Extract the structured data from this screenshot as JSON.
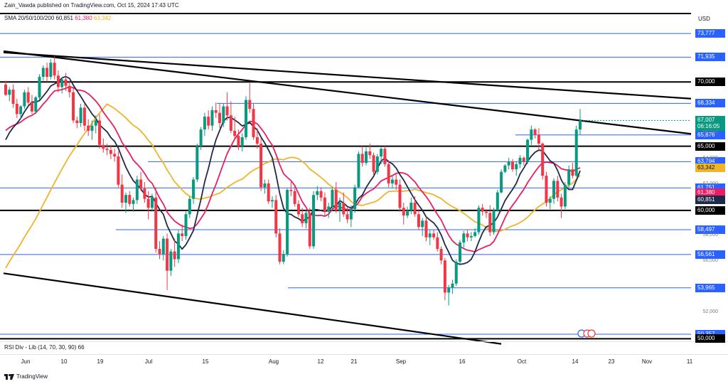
{
  "header": {
    "published": "Zain_Vawda published on TradingView.com, Oct 15, 2024 17:43 UTC"
  },
  "indicators": {
    "sma_label": "SMA 20/50/100/200",
    "sma_values": [
      "60,851",
      "61,380",
      "63,342"
    ],
    "rsi_label": "RSI Div - Lib (14, 70, 30, 90)",
    "rsi_value": "66"
  },
  "footer": {
    "brand": "TradingView"
  },
  "colors": {
    "up": "#089981",
    "down": "#f23645",
    "sma_dark": "#1e2a4a",
    "sma_red": "#e91e63",
    "sma_yellow": "#f0b429",
    "level_blue": "#2962ff",
    "black": "#000000",
    "last_green": "#089981"
  },
  "chart_data": {
    "type": "candlestick",
    "currency": "USD",
    "ylim": [
      49800,
      75500
    ],
    "x_tick_labels": [
      "Jun",
      "10",
      "19",
      "Jul",
      "15",
      "Aug",
      "12",
      "21",
      "Sep",
      "16",
      "Oct",
      "14",
      "23",
      "Nov",
      "11"
    ],
    "price_axis_labels": [
      "66,000",
      "64,000",
      "62,000",
      "58,000",
      "56,000",
      "52,000"
    ],
    "levels_blue": [
      73777,
      71935,
      68334,
      65876,
      63794,
      61751,
      58497,
      56561,
      53965,
      50357
    ],
    "levels_black": [
      70000,
      65000,
      60000,
      50000
    ],
    "axis_tags": [
      {
        "label": "73,777",
        "kind": "blue",
        "value": 73777
      },
      {
        "label": "71,935",
        "kind": "blue",
        "value": 71935
      },
      {
        "label": "70,000",
        "kind": "black",
        "value": 70000
      },
      {
        "label": "68,334",
        "kind": "blue",
        "value": 68334
      },
      {
        "label": "67,007",
        "kind": "green",
        "value": 67007
      },
      {
        "label": "06:16:05",
        "kind": "green-sub",
        "value": 66540
      },
      {
        "label": "65,876",
        "kind": "blue",
        "value": 65876
      },
      {
        "label": "65,000",
        "kind": "black",
        "value": 65000
      },
      {
        "label": "63,794",
        "kind": "blue",
        "value": 63794
      },
      {
        "label": "63,342",
        "kind": "yellow",
        "value": 63342
      },
      {
        "label": "61,751",
        "kind": "blue",
        "value": 61751
      },
      {
        "label": "61,380",
        "kind": "red",
        "value": 61380
      },
      {
        "label": "60,851",
        "kind": "dark",
        "value": 60851
      },
      {
        "label": "60,000",
        "kind": "black",
        "value": 60000
      },
      {
        "label": "58,497",
        "kind": "blue",
        "value": 58497
      },
      {
        "label": "56,561",
        "kind": "blue",
        "value": 56561
      },
      {
        "label": "53,965",
        "kind": "blue",
        "value": 53965
      },
      {
        "label": "50,357",
        "kind": "blue",
        "value": 50357
      },
      {
        "label": "50,000",
        "kind": "black",
        "value": 50000
      }
    ],
    "candles": [
      [
        69800,
        70100,
        68900,
        69000
      ],
      [
        69000,
        69600,
        68500,
        69400
      ],
      [
        69400,
        69800,
        68000,
        68300
      ],
      [
        68300,
        68700,
        67200,
        67500
      ],
      [
        67500,
        68200,
        67100,
        68100
      ],
      [
        68100,
        69400,
        67900,
        69200
      ],
      [
        69200,
        69600,
        68200,
        68400
      ],
      [
        68400,
        69000,
        67500,
        67700
      ],
      [
        67700,
        68900,
        67500,
        68800
      ],
      [
        68800,
        70600,
        68600,
        70400
      ],
      [
        70400,
        71300,
        70100,
        71100
      ],
      [
        71100,
        71500,
        70000,
        70400
      ],
      [
        70400,
        71800,
        70200,
        71500
      ],
      [
        71500,
        72000,
        70200,
        70500
      ],
      [
        70500,
        70900,
        69200,
        69600
      ],
      [
        69600,
        70400,
        69100,
        70200
      ],
      [
        70200,
        70700,
        69300,
        69700
      ],
      [
        69700,
        70100,
        68800,
        69200
      ],
      [
        69200,
        69500,
        66800,
        67000
      ],
      [
        67000,
        67300,
        66400,
        66800
      ],
      [
        66800,
        68300,
        66500,
        68000
      ],
      [
        68000,
        68300,
        66200,
        66600
      ],
      [
        66600,
        67100,
        65800,
        66200
      ],
      [
        66200,
        67000,
        65500,
        66600
      ],
      [
        66600,
        67400,
        66000,
        67000
      ],
      [
        67000,
        67500,
        64800,
        65100
      ],
      [
        65100,
        65600,
        64500,
        64800
      ],
      [
        64800,
        65200,
        64300,
        64700
      ],
      [
        64700,
        65100,
        64000,
        64400
      ],
      [
        64400,
        64800,
        63800,
        64200
      ],
      [
        64200,
        64600,
        61800,
        62000
      ],
      [
        62000,
        62800,
        60200,
        60600
      ],
      [
        60600,
        61400,
        59800,
        61200
      ],
      [
        61200,
        61500,
        60300,
        60500
      ],
      [
        60500,
        61000,
        59900,
        60800
      ],
      [
        60800,
        62700,
        60500,
        62400
      ],
      [
        62400,
        63000,
        61500,
        61700
      ],
      [
        61700,
        62200,
        60600,
        60900
      ],
      [
        60900,
        61500,
        59300,
        60200
      ],
      [
        60200,
        61300,
        59900,
        61000
      ],
      [
        61000,
        61800,
        56700,
        57000
      ],
      [
        57000,
        57600,
        56200,
        56600
      ],
      [
        56600,
        58000,
        56100,
        57800
      ],
      [
        57800,
        58200,
        53800,
        55300
      ],
      [
        55300,
        57000,
        54900,
        56800
      ],
      [
        56800,
        57800,
        55600,
        56200
      ],
      [
        56200,
        58500,
        55900,
        58200
      ],
      [
        58200,
        58900,
        57600,
        58000
      ],
      [
        58000,
        59900,
        57700,
        59700
      ],
      [
        59700,
        61100,
        59400,
        60900
      ],
      [
        60900,
        62600,
        60500,
        62400
      ],
      [
        62400,
        65200,
        62200,
        65000
      ],
      [
        65000,
        66500,
        64700,
        66300
      ],
      [
        66300,
        67600,
        65800,
        67300
      ],
      [
        67300,
        67800,
        66300,
        66600
      ],
      [
        66600,
        68100,
        66200,
        67800
      ],
      [
        67800,
        68400,
        67200,
        67600
      ],
      [
        67600,
        68300,
        66400,
        66800
      ],
      [
        66800,
        68300,
        66500,
        68100
      ],
      [
        68100,
        69200,
        67000,
        67400
      ],
      [
        67400,
        68500,
        66000,
        66200
      ],
      [
        66200,
        67300,
        65500,
        65800
      ],
      [
        65800,
        66300,
        64700,
        65000
      ],
      [
        65000,
        66000,
        64600,
        65700
      ],
      [
        65700,
        68900,
        65500,
        68600
      ],
      [
        68600,
        69900,
        67600,
        67900
      ],
      [
        67900,
        68300,
        65500,
        65700
      ],
      [
        65700,
        66400,
        64800,
        65200
      ],
      [
        65200,
        65600,
        61500,
        61800
      ],
      [
        61800,
        62400,
        61300,
        62100
      ],
      [
        62100,
        62400,
        60500,
        60700
      ],
      [
        60700,
        61100,
        60200,
        60800
      ],
      [
        60800,
        61200,
        57900,
        58200
      ],
      [
        58200,
        58600,
        55800,
        56000
      ],
      [
        56000,
        56900,
        55800,
        56600
      ],
      [
        56600,
        61700,
        56400,
        61600
      ],
      [
        61600,
        62300,
        61100,
        61500
      ],
      [
        61500,
        61900,
        60300,
        60500
      ],
      [
        60500,
        60800,
        59500,
        59700
      ],
      [
        59700,
        60200,
        58700,
        59000
      ],
      [
        59000,
        60000,
        58600,
        59800
      ],
      [
        59800,
        60200,
        57000,
        57200
      ],
      [
        57200,
        61500,
        57000,
        61200
      ],
      [
        61200,
        61900,
        60800,
        61500
      ],
      [
        61500,
        61800,
        60700,
        61000
      ],
      [
        61000,
        61400,
        59600,
        59900
      ],
      [
        59900,
        60600,
        59400,
        60300
      ],
      [
        60300,
        61800,
        60000,
        61600
      ],
      [
        61600,
        62200,
        59800,
        60000
      ],
      [
        60000,
        61000,
        59100,
        60600
      ],
      [
        60600,
        61400,
        59500,
        59700
      ],
      [
        59700,
        60300,
        59000,
        59300
      ],
      [
        59300,
        60400,
        58700,
        60100
      ],
      [
        60100,
        62000,
        59800,
        61800
      ],
      [
        61800,
        64600,
        61700,
        64400
      ],
      [
        64400,
        65000,
        63400,
        63700
      ],
      [
        63700,
        64900,
        63500,
        64600
      ],
      [
        64600,
        65200,
        64000,
        64300
      ],
      [
        64300,
        64500,
        62700,
        63000
      ],
      [
        63000,
        64400,
        62800,
        64200
      ],
      [
        64200,
        64900,
        63600,
        64800
      ],
      [
        64800,
        65000,
        63400,
        63600
      ],
      [
        63600,
        63900,
        61800,
        62100
      ],
      [
        62100,
        62700,
        61700,
        62400
      ],
      [
        62400,
        62800,
        61600,
        62000
      ],
      [
        62000,
        62400,
        59900,
        60200
      ],
      [
        60200,
        60600,
        58900,
        59600
      ],
      [
        59600,
        60300,
        59400,
        60000
      ],
      [
        60000,
        61000,
        59700,
        60600
      ],
      [
        60600,
        61100,
        59500,
        59700
      ],
      [
        59700,
        60100,
        58500,
        58700
      ],
      [
        58700,
        59400,
        58000,
        59200
      ],
      [
        59200,
        59500,
        57600,
        57900
      ],
      [
        57900,
        58500,
        57300,
        58200
      ],
      [
        58200,
        58500,
        57700,
        57900
      ],
      [
        57900,
        58300,
        56800,
        57000
      ],
      [
        57000,
        57200,
        55800,
        56100
      ],
      [
        56100,
        56300,
        53000,
        53600
      ],
      [
        53600,
        54200,
        52600,
        54000
      ],
      [
        54000,
        54600,
        53500,
        54300
      ],
      [
        54300,
        56200,
        54100,
        56000
      ],
      [
        56000,
        57700,
        55700,
        57500
      ],
      [
        57500,
        58400,
        57100,
        58200
      ],
      [
        58200,
        58500,
        57600,
        57900
      ],
      [
        57900,
        58300,
        57600,
        58000
      ],
      [
        58000,
        58600,
        57900,
        58300
      ],
      [
        58300,
        60400,
        58100,
        60200
      ],
      [
        60200,
        60500,
        59600,
        59900
      ],
      [
        59900,
        60100,
        59400,
        59800
      ],
      [
        59800,
        60400,
        58000,
        58300
      ],
      [
        58300,
        60200,
        58100,
        60000
      ],
      [
        60000,
        61600,
        59900,
        61400
      ],
      [
        61400,
        63200,
        61300,
        63000
      ],
      [
        63000,
        63600,
        62900,
        63500
      ],
      [
        63500,
        64100,
        63200,
        63800
      ],
      [
        63800,
        64000,
        63000,
        63200
      ],
      [
        63200,
        63800,
        62700,
        63600
      ],
      [
        63600,
        64300,
        63300,
        64100
      ],
      [
        64100,
        64200,
        63500,
        63800
      ],
      [
        63800,
        65600,
        63600,
        65500
      ],
      [
        65500,
        66600,
        65100,
        66300
      ],
      [
        66300,
        66400,
        65600,
        65900
      ],
      [
        65900,
        66400,
        64600,
        65200
      ],
      [
        65200,
        65300,
        62400,
        62700
      ],
      [
        62700,
        63000,
        60300,
        60600
      ],
      [
        60600,
        61100,
        60100,
        60900
      ],
      [
        60900,
        62500,
        60500,
        62300
      ],
      [
        62300,
        62700,
        60700,
        61000
      ],
      [
        61000,
        61300,
        59400,
        60300
      ],
      [
        60300,
        62200,
        60100,
        62000
      ],
      [
        62000,
        63500,
        61700,
        63200
      ],
      [
        63200,
        63700,
        62500,
        62700
      ],
      [
        62700,
        66600,
        62600,
        66300
      ],
      [
        66300,
        67900,
        65900,
        67007
      ]
    ]
  }
}
